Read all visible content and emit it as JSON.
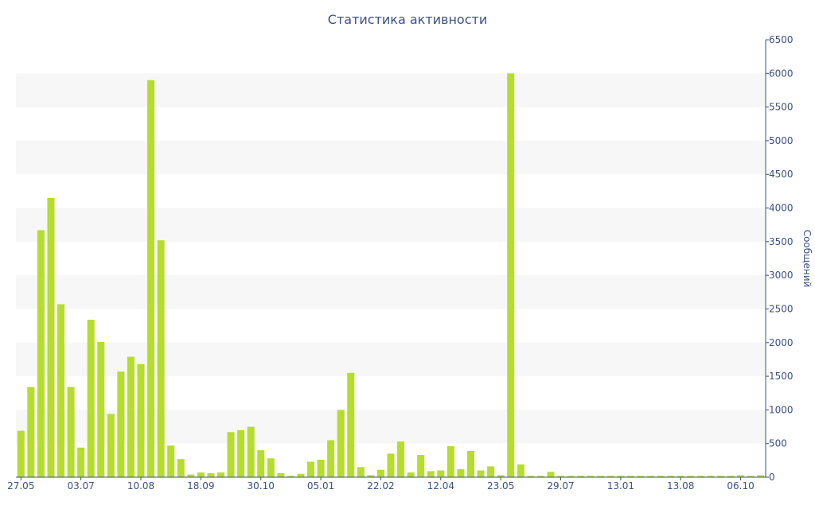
{
  "chart_data": {
    "type": "bar",
    "title": "Статистика активности",
    "ylabel": "Сообщений",
    "xlabel": "",
    "ylim": [
      0,
      6500
    ],
    "yticks": [
      0,
      500,
      1000,
      1500,
      2000,
      2500,
      3000,
      3500,
      4000,
      4500,
      5000,
      5500,
      6000,
      6500
    ],
    "y_axis_side": "right",
    "xtick_labels": [
      {
        "label": "27.05",
        "bar_index": 0
      },
      {
        "label": "03.07",
        "bar_index": 6
      },
      {
        "label": "10.08",
        "bar_index": 12
      },
      {
        "label": "18.09",
        "bar_index": 18
      },
      {
        "label": "30.10",
        "bar_index": 24
      },
      {
        "label": "05.01",
        "bar_index": 30
      },
      {
        "label": "22.02",
        "bar_index": 36
      },
      {
        "label": "12.04",
        "bar_index": 42
      },
      {
        "label": "23.05",
        "bar_index": 48
      },
      {
        "label": "29.07",
        "bar_index": 54
      },
      {
        "label": "13.01",
        "bar_index": 60
      },
      {
        "label": "13.08",
        "bar_index": 66
      },
      {
        "label": "06.10",
        "bar_index": 72
      }
    ],
    "values": [
      690,
      1340,
      3670,
      4150,
      2570,
      1340,
      440,
      2340,
      2010,
      940,
      1570,
      1790,
      1680,
      5900,
      3520,
      470,
      270,
      40,
      70,
      60,
      70,
      670,
      700,
      750,
      400,
      280,
      60,
      20,
      50,
      230,
      260,
      550,
      1000,
      1550,
      150,
      30,
      110,
      350,
      530,
      70,
      330,
      90,
      100,
      460,
      120,
      390,
      100,
      160,
      30,
      6000,
      190,
      20,
      20,
      80,
      20,
      20,
      20,
      20,
      20,
      20,
      20,
      20,
      20,
      20,
      20,
      20,
      20,
      20,
      20,
      20,
      20,
      20,
      30,
      20,
      30
    ],
    "bar_color": "#b6dc2e",
    "grid": "horizontal bands",
    "band_color": "#f7f7f7",
    "axis_color": "#3d4f85"
  }
}
